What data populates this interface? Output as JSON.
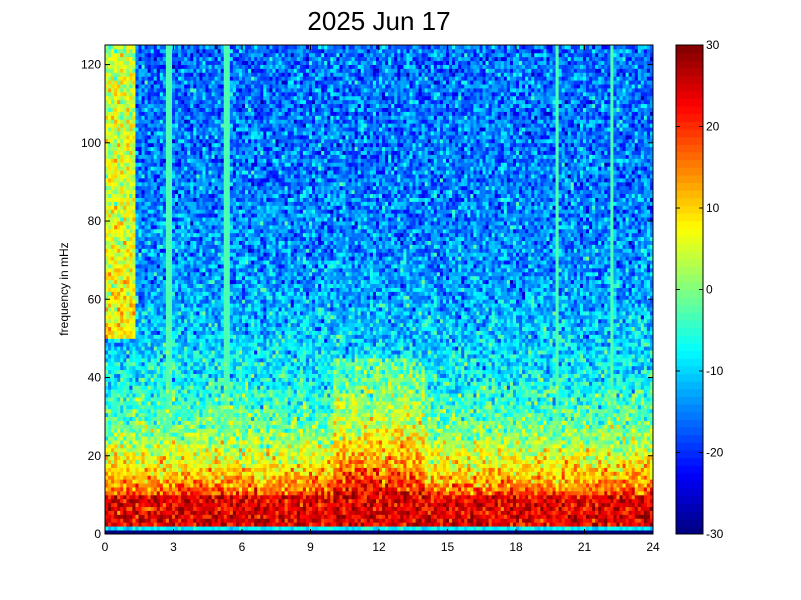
{
  "chart_data": {
    "type": "heatmap",
    "title": "2025 Jun 17",
    "xlabel": "",
    "ylabel": "frequency in mHz",
    "xlim": [
      0,
      24
    ],
    "ylim": [
      0,
      125
    ],
    "x_ticks": [
      0,
      3,
      6,
      9,
      12,
      15,
      18,
      21,
      24
    ],
    "y_ticks": [
      0,
      20,
      40,
      60,
      80,
      100,
      120
    ],
    "colorbar": {
      "colormap": "jet",
      "range": [
        -30,
        30
      ],
      "ticks": [
        -30,
        -20,
        -10,
        0,
        10,
        20,
        30
      ]
    },
    "time_bins": 180,
    "frequency_bins": 125,
    "low_frequency_band_mHz": [
      2,
      10
    ],
    "low_frequency_band_level": 24,
    "midband_peak_hours": [
      10,
      14
    ],
    "noisy_interval_hours": [
      0,
      1.3
    ],
    "vertical_stripes_hours": [
      2.8,
      5.3,
      19.8,
      22.2
    ],
    "grid": false,
    "legend": "colorbar-right"
  }
}
